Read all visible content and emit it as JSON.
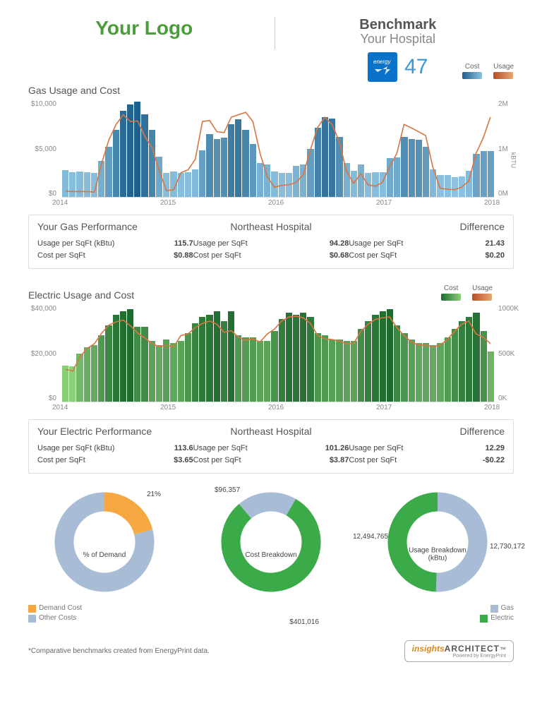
{
  "header": {
    "logo": "Your Logo",
    "benchmark": "Benchmark",
    "subtitle": "Your Hospital",
    "score": "47",
    "legend": {
      "cost": "Cost",
      "usage": "Usage"
    }
  },
  "colors": {
    "logo": "#4a9d3a",
    "score": "#3a98d8",
    "gas_grad_start": "#1f5f8b",
    "gas_grad_end": "#8dc3e0",
    "elec_grad_start": "#1f6b2f",
    "elec_grad_end": "#8bcf7a",
    "usage_line": "#d97541",
    "panel_border": "#dddddd",
    "demand_color": "#f5a742",
    "other_color": "#a9bcd6",
    "electric_green": "#3bab4a",
    "gas_blue": "#a9bcd6"
  },
  "gas": {
    "title": "Gas Usage and Cost",
    "xticks": [
      "2014",
      "2015",
      "2016",
      "2017",
      "2018"
    ],
    "y1ticks": [
      "$10,000",
      "$5,000",
      "$0"
    ],
    "y2ticks": [
      "2M",
      "1M",
      "0M"
    ],
    "y2label": "kBTU",
    "y1max": 13000,
    "y2max": 2000000,
    "cost_series": [
      3600,
      3300,
      3400,
      3300,
      3200,
      4800,
      6700,
      9000,
      11600,
      12400,
      12800,
      11100,
      9000,
      5400,
      3200,
      3400,
      3200,
      3300,
      3700,
      6300,
      8400,
      7800,
      8000,
      9800,
      10400,
      9000,
      7100,
      4600,
      4400,
      3400,
      3200,
      3200,
      4200,
      4400,
      6500,
      9300,
      10700,
      10500,
      8100,
      4600,
      3500,
      4400,
      3200,
      3300,
      3300,
      5200,
      5300,
      8100,
      7800,
      7700,
      6700,
      3700,
      2900,
      2900,
      2700,
      2800,
      3500,
      5800,
      6200,
      6200
    ],
    "usage_series": [
      120000,
      110000,
      110000,
      110000,
      100000,
      700000,
      1180000,
      1500000,
      1700000,
      1560000,
      1570000,
      1250000,
      1020000,
      540000,
      130000,
      150000,
      500000,
      560000,
      780000,
      1560000,
      1580000,
      1350000,
      1330000,
      1650000,
      1700000,
      1750000,
      1560000,
      900000,
      420000,
      200000,
      240000,
      250000,
      300000,
      460000,
      980000,
      1440000,
      1650000,
      1500000,
      1150000,
      530000,
      280000,
      480000,
      250000,
      220000,
      300000,
      620000,
      900000,
      1500000,
      1430000,
      1350000,
      1270000,
      620000,
      180000,
      160000,
      150000,
      200000,
      330000,
      900000,
      1220000,
      1650000
    ],
    "performance": {
      "col1": {
        "title": "Your Gas Performance",
        "usage_label": "Usage per SqFt (kBtu)",
        "usage": "115.7",
        "cost_label": "Cost per SqFt",
        "cost": "$0.88"
      },
      "col2": {
        "title": "Northeast Hospital",
        "usage_label": "Usage per SqFt",
        "usage": "94.28",
        "cost_label": "Cost per SqFt",
        "cost": "$0.68"
      },
      "col3": {
        "title": "Difference",
        "usage_label": "Usage per SqFt",
        "usage": "21.43",
        "cost_label": "Cost per SqFt",
        "cost": "$0.20"
      }
    }
  },
  "electric": {
    "title": "Electric Usage and Cost",
    "xticks": [
      "2014",
      "2015",
      "2016",
      "2017",
      "2018"
    ],
    "y1ticks": [
      "$40,000",
      "$20,000",
      "$0"
    ],
    "y2ticks": [
      "1000K",
      "500K",
      "0K"
    ],
    "y1max": 48000,
    "y2max": 1200000,
    "cost_series": [
      18000,
      17500,
      24000,
      27000,
      28000,
      33000,
      38000,
      43000,
      45000,
      46000,
      37000,
      37000,
      30000,
      28000,
      31000,
      29000,
      30000,
      34000,
      39000,
      42000,
      43000,
      45000,
      40000,
      45000,
      33000,
      32000,
      32000,
      30000,
      30000,
      35000,
      41000,
      44000,
      43000,
      44000,
      42000,
      34000,
      33000,
      31000,
      31000,
      30000,
      30000,
      36000,
      40000,
      43000,
      45000,
      46000,
      38000,
      34000,
      31000,
      29000,
      29000,
      28000,
      29000,
      32000,
      36000,
      40000,
      42000,
      44000,
      35000,
      25000
    ],
    "usage_series": [
      400000,
      380000,
      560000,
      660000,
      720000,
      850000,
      950000,
      990000,
      1010000,
      940000,
      850000,
      790000,
      720000,
      680000,
      700000,
      680000,
      820000,
      840000,
      920000,
      970000,
      1000000,
      960000,
      860000,
      880000,
      800000,
      760000,
      780000,
      740000,
      840000,
      900000,
      1000000,
      1050000,
      1060000,
      1040000,
      970000,
      820000,
      780000,
      770000,
      750000,
      720000,
      720000,
      870000,
      960000,
      1020000,
      1040000,
      1050000,
      920000,
      820000,
      740000,
      700000,
      700000,
      680000,
      700000,
      770000,
      870000,
      960000,
      1000000,
      840000,
      800000,
      720000
    ],
    "performance": {
      "col1": {
        "title": "Your Electric  Performance",
        "usage_label": "Usage per SqFt (kBtu)",
        "usage": "113.6",
        "cost_label": "Cost per SqFt",
        "cost": "$3.65"
      },
      "col2": {
        "title": "Northeast Hospital",
        "usage_label": "Usage per SqFt",
        "usage": "101.26",
        "cost_label": "Cost per SqFt",
        "cost": "$3.87"
      },
      "col3": {
        "title": "Difference",
        "usage_label": "Usage per SqFt",
        "usage": "12.29",
        "cost_label": "Cost per SqFt",
        "cost": "-$0.22"
      }
    }
  },
  "donuts": {
    "demand": {
      "center": "% of Demand",
      "pct_label": "21%",
      "pct": 21,
      "colors": {
        "demand": "#f5a742",
        "other": "#a9bcd6"
      },
      "legend": [
        {
          "label": "Demand Cost",
          "color": "#f5a742"
        },
        {
          "label": "Other Costs",
          "color": "#a9bcd6"
        }
      ]
    },
    "cost": {
      "center": "Cost Breakdown",
      "top_label": "$96,357",
      "bottom_label": "$401,016",
      "gas_pct": 19.4,
      "colors": {
        "gas": "#a9bcd6",
        "electric": "#3bab4a"
      }
    },
    "usage": {
      "center": "Usage Breakdown\n(kBtu)",
      "left_label": "12,494,765",
      "right_label": "12,730,172",
      "gas_pct": 50.5,
      "colors": {
        "gas": "#a9bcd6",
        "electric": "#3bab4a"
      },
      "legend": [
        {
          "label": "Gas",
          "color": "#a9bcd6"
        },
        {
          "label": "Electric",
          "color": "#3bab4a"
        }
      ]
    }
  },
  "footer": {
    "note": "*Comparative benchmarks created from EnergyPrint data.",
    "brand1": "insights",
    "brand2": "ARCHITECT",
    "brand3": "Powered by EnergyPrint"
  }
}
